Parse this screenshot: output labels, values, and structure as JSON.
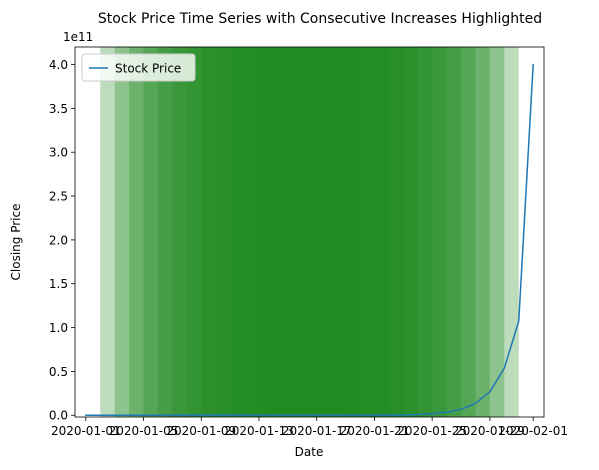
{
  "chart_data": {
    "type": "line",
    "title": "Stock Price Time Series with Consecutive Increases Highlighted",
    "xlabel": "Date",
    "ylabel": "Closing Price",
    "y_offset_label": "1e11",
    "y_scale": 100000000000,
    "xlim": [
      "2019-12-31T06:00",
      "2020-02-01T18:00"
    ],
    "ylim": [
      -2000000000,
      420000000000
    ],
    "x_ticks": [
      {
        "date": "2020-01-01",
        "label": "2020-01-01"
      },
      {
        "date": "2020-01-05",
        "label": "2020-01-05"
      },
      {
        "date": "2020-01-09",
        "label": "2020-01-09"
      },
      {
        "date": "2020-01-13",
        "label": "2020-01-13"
      },
      {
        "date": "2020-01-17",
        "label": "2020-01-17"
      },
      {
        "date": "2020-01-21",
        "label": "2020-01-21"
      },
      {
        "date": "2020-01-25",
        "label": "2020-01-25"
      },
      {
        "date": "2020-01-29",
        "label": "2020-01-29"
      },
      {
        "date": "2020-02-01",
        "label": "2020-02-01"
      }
    ],
    "y_ticks": [
      {
        "value": 0,
        "label": "0.0"
      },
      {
        "value": 50000000000,
        "label": "0.5"
      },
      {
        "value": 100000000000,
        "label": "1.0"
      },
      {
        "value": 150000000000,
        "label": "1.5"
      },
      {
        "value": 200000000000,
        "label": "2.0"
      },
      {
        "value": 250000000000,
        "label": "2.5"
      },
      {
        "value": 300000000000,
        "label": "3.0"
      },
      {
        "value": 350000000000,
        "label": "3.5"
      },
      {
        "value": 400000000000,
        "label": "4.0"
      }
    ],
    "legend": {
      "placement": "upper-left",
      "entries": [
        "Stock Price"
      ]
    },
    "grid": false,
    "highlight_color": "#228B22",
    "highlight_alpha": 0.3,
    "highlight_spans": [
      {
        "start": "2020-01-02",
        "end": "2020-01-31"
      },
      {
        "start": "2020-01-03",
        "end": "2020-01-30"
      },
      {
        "start": "2020-01-04",
        "end": "2020-01-29"
      },
      {
        "start": "2020-01-05",
        "end": "2020-01-28"
      },
      {
        "start": "2020-01-06",
        "end": "2020-01-27"
      },
      {
        "start": "2020-01-07",
        "end": "2020-01-26"
      },
      {
        "start": "2020-01-08",
        "end": "2020-01-25"
      },
      {
        "start": "2020-01-09",
        "end": "2020-01-24"
      },
      {
        "start": "2020-01-10",
        "end": "2020-01-23"
      },
      {
        "start": "2020-01-11",
        "end": "2020-01-22"
      },
      {
        "start": "2020-01-12",
        "end": "2020-01-21"
      },
      {
        "start": "2020-01-13",
        "end": "2020-01-20"
      },
      {
        "start": "2020-01-14",
        "end": "2020-01-19"
      },
      {
        "start": "2020-01-15",
        "end": "2020-01-18"
      },
      {
        "start": "2020-01-16",
        "end": "2020-01-17"
      }
    ],
    "series": [
      {
        "name": "Stock Price",
        "color": "#1f77b4",
        "points": [
          {
            "date": "2020-01-01",
            "value": 100
          },
          {
            "date": "2020-01-02",
            "value": 200
          },
          {
            "date": "2020-01-03",
            "value": 400
          },
          {
            "date": "2020-01-04",
            "value": 800
          },
          {
            "date": "2020-01-05",
            "value": 1600
          },
          {
            "date": "2020-01-06",
            "value": 3200
          },
          {
            "date": "2020-01-07",
            "value": 6400
          },
          {
            "date": "2020-01-08",
            "value": 12800
          },
          {
            "date": "2020-01-09",
            "value": 25600
          },
          {
            "date": "2020-01-10",
            "value": 51200
          },
          {
            "date": "2020-01-11",
            "value": 102400
          },
          {
            "date": "2020-01-12",
            "value": 204800
          },
          {
            "date": "2020-01-13",
            "value": 409600
          },
          {
            "date": "2020-01-14",
            "value": 819200
          },
          {
            "date": "2020-01-15",
            "value": 1638400
          },
          {
            "date": "2020-01-16",
            "value": 3276800
          },
          {
            "date": "2020-01-17",
            "value": 6553600
          },
          {
            "date": "2020-01-18",
            "value": 13107200
          },
          {
            "date": "2020-01-19",
            "value": 26214400
          },
          {
            "date": "2020-01-20",
            "value": 52428800
          },
          {
            "date": "2020-01-21",
            "value": 104857600
          },
          {
            "date": "2020-01-22",
            "value": 209715200
          },
          {
            "date": "2020-01-23",
            "value": 419430400
          },
          {
            "date": "2020-01-24",
            "value": 838860800
          },
          {
            "date": "2020-01-25",
            "value": 1677721600
          },
          {
            "date": "2020-01-26",
            "value": 3355443200
          },
          {
            "date": "2020-01-27",
            "value": 6710886400
          },
          {
            "date": "2020-01-28",
            "value": 13421772800
          },
          {
            "date": "2020-01-29",
            "value": 26843545600
          },
          {
            "date": "2020-01-30",
            "value": 53687091200
          },
          {
            "date": "2020-01-31",
            "value": 107374182400
          },
          {
            "date": "2020-02-01",
            "value": 400000000000
          }
        ]
      }
    ]
  }
}
